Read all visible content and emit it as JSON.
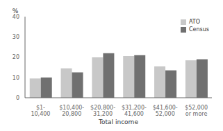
{
  "chart_data": {
    "type": "bar",
    "categories": [
      "$1-\n10,400",
      "$10,400-\n20,800",
      "$20,800-\n31,200",
      "$31,200-\n41,600",
      "$41,600-\n52,000",
      "$52,000\nor more"
    ],
    "series": [
      {
        "name": "ATO",
        "color": "#c8c8c8",
        "values": [
          9.5,
          14.5,
          20.0,
          20.5,
          15.5,
          18.5
        ]
      },
      {
        "name": "Census",
        "color": "#707070",
        "values": [
          10.0,
          12.5,
          22.0,
          21.0,
          13.5,
          19.0
        ]
      }
    ],
    "xlabel": "Total income",
    "ylabel": "%",
    "ylim": [
      0,
      40
    ],
    "yticks": [
      0,
      10,
      20,
      30,
      40
    ],
    "legend": "upper right",
    "grid": false
  }
}
